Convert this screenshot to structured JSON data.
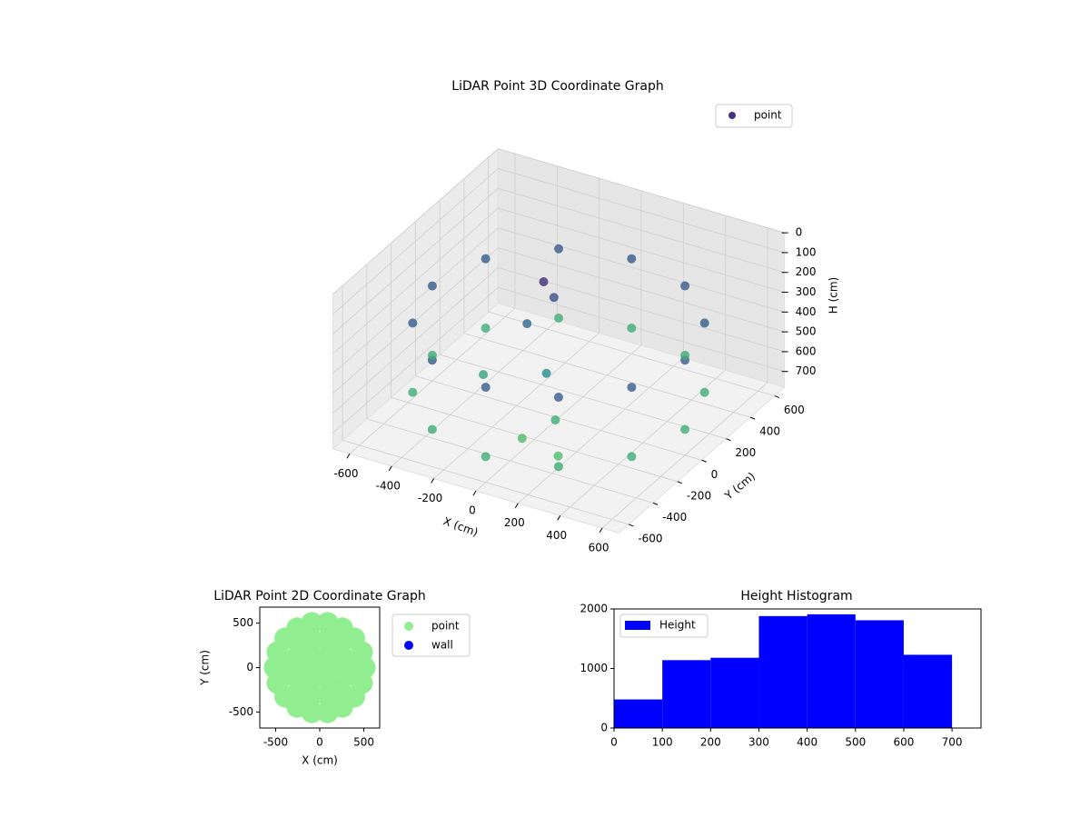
{
  "chart_data": [
    {
      "type": "scatter3d",
      "title": "LiDAR Point 3D Coordinate Graph",
      "xlabel": "X (cm)",
      "ylabel": "Y (cm)",
      "zlabel": "H (cm)",
      "xlim": [
        -680,
        680
      ],
      "ylim": [
        -680,
        680
      ],
      "zlim": [
        0,
        780
      ],
      "zinverted": true,
      "xticks": [
        -600,
        -400,
        -200,
        0,
        200,
        400,
        600
      ],
      "yticks": [
        -600,
        -400,
        -200,
        0,
        200,
        400,
        600
      ],
      "zticks": [
        0,
        100,
        200,
        300,
        400,
        500,
        600,
        700
      ],
      "colormap": [
        "#440154",
        "#3b528b",
        "#21918c",
        "#5ec962"
      ],
      "legend": "upper right",
      "series": [
        {
          "name": "point",
          "color": "#46327e",
          "x": [
            600,
            520,
            300,
            0,
            -300,
            -520,
            -600,
            -520,
            -300,
            0,
            300,
            520,
            600,
            520,
            300,
            0,
            -300,
            -520,
            -600,
            -520,
            -300,
            0,
            300,
            520,
            -100,
            -80,
            -150,
            0,
            100,
            -300,
            0,
            200
          ],
          "y": [
            0,
            300,
            520,
            600,
            520,
            300,
            0,
            -300,
            -520,
            -600,
            -520,
            -300,
            0,
            300,
            520,
            600,
            520,
            300,
            0,
            -300,
            -520,
            -600,
            -520,
            -300,
            50,
            100,
            0,
            -100,
            -200,
            -100,
            -300,
            -350
          ],
          "z": [
            300,
            300,
            300,
            300,
            300,
            300,
            300,
            300,
            300,
            300,
            300,
            300,
            650,
            650,
            650,
            650,
            650,
            650,
            650,
            650,
            650,
            650,
            650,
            650,
            150,
            250,
            350,
            500,
            650,
            600,
            720,
            720
          ]
        }
      ]
    },
    {
      "type": "scatter",
      "title": "LiDAR Point 2D Coordinate Graph",
      "xlabel": "X (cm)",
      "ylabel": "Y (cm)",
      "xlim": [
        -680,
        680
      ],
      "ylim": [
        -680,
        680
      ],
      "xticks": [
        -500,
        0,
        500
      ],
      "yticks": [
        -500,
        0,
        500
      ],
      "legend": "outside right",
      "series": [
        {
          "name": "point",
          "color": "#90ee90",
          "x": [
            0,
            120,
            60,
            -60,
            -120,
            -60,
            60,
            309,
            226,
            83,
            -83,
            -226,
            -309,
            -309,
            -226,
            -83,
            83,
            226,
            309,
            510,
            479,
            391,
            255,
            89,
            -89,
            -255,
            -391,
            -479,
            -510,
            -479,
            -391,
            -255,
            -89,
            89,
            255,
            391,
            479
          ],
          "y": [
            0,
            0,
            104,
            104,
            0,
            -104,
            -104,
            83,
            226,
            309,
            309,
            226,
            83,
            -83,
            -226,
            -309,
            -309,
            -226,
            -83,
            0,
            174,
            328,
            442,
            502,
            502,
            442,
            328,
            174,
            0,
            -174,
            -328,
            -442,
            -502,
            -502,
            -442,
            -328,
            -174
          ]
        },
        {
          "name": "wall",
          "color": "#0000ff",
          "x": [],
          "y": []
        }
      ]
    },
    {
      "type": "histogram",
      "title": "Height Histogram",
      "bins": [
        0,
        100,
        200,
        300,
        400,
        500,
        600,
        700
      ],
      "series": [
        {
          "name": "Height",
          "color": "#0000ff",
          "values": [
            480,
            1140,
            1180,
            1880,
            1910,
            1810,
            1230
          ]
        }
      ],
      "xlim": [
        0,
        760
      ],
      "ylim": [
        0,
        2000
      ],
      "xticks": [
        0,
        100,
        200,
        300,
        400,
        500,
        600,
        700
      ],
      "yticks": [
        0,
        1000,
        2000
      ],
      "legend": "upper left"
    }
  ]
}
